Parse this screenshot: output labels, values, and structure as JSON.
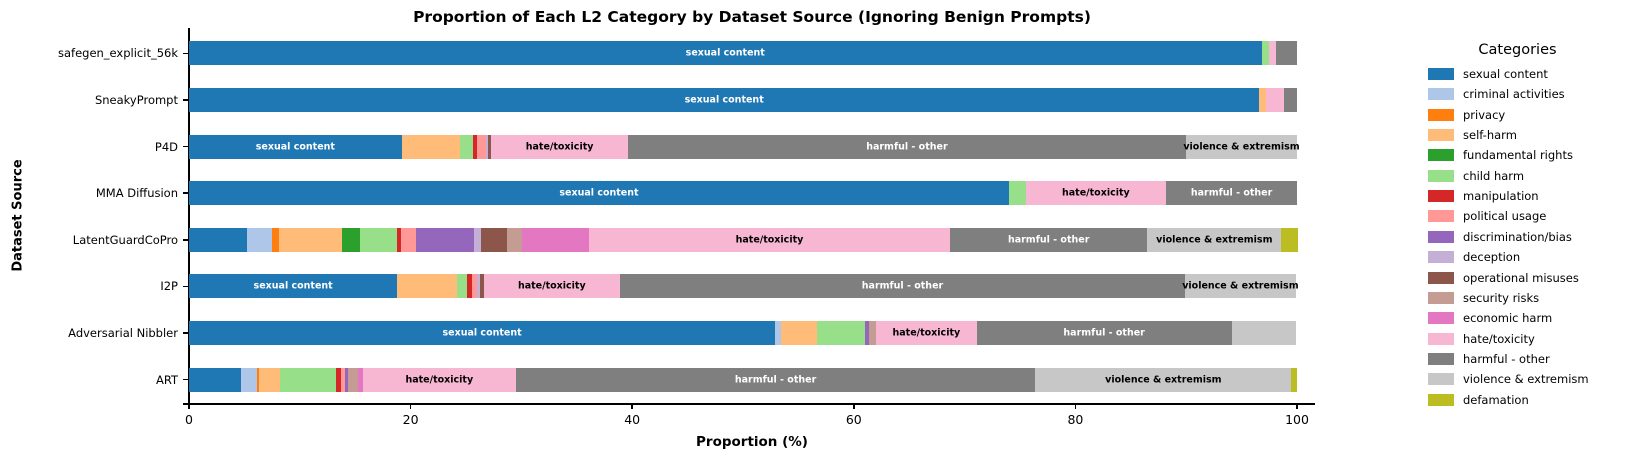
{
  "title": "Proportion of Each L2 Category by Dataset Source (Ignoring Benign Prompts)",
  "xlabel": "Proportion (%)",
  "ylabel": "Dataset Source",
  "legend": {
    "title": "Categories",
    "items": [
      "sexual content",
      "criminal activities",
      "privacy",
      "self-harm",
      "fundamental rights",
      "child harm",
      "manipulation",
      "political usage",
      "discrimination/bias",
      "deception",
      "operational misuses",
      "security risks",
      "economic harm",
      "hate/toxicity",
      "harmful - other",
      "violence & extremism",
      "defamation"
    ]
  },
  "colors": {
    "sexual content": "#1f77b4",
    "criminal activities": "#aec7e8",
    "privacy": "#ff7f0e",
    "self-harm": "#ffbb78",
    "fundamental rights": "#2ca02c",
    "child harm": "#98df8a",
    "manipulation": "#d62728",
    "political usage": "#ff9896",
    "discrimination/bias": "#9467bd",
    "deception": "#c5b0d5",
    "operational misuses": "#8c564b",
    "security risks": "#c49c94",
    "economic harm": "#e377c2",
    "hate/toxicity": "#f7b6d2",
    "harmful - other": "#7f7f7f",
    "violence & extremism": "#c7c7c7",
    "defamation": "#bcbd22"
  },
  "label_text_colors": {
    "sexual content": "#ffffff",
    "harmful - other": "#ffffff",
    "hate/toxicity": "#000000",
    "violence & extremism": "#000000"
  },
  "chart_data": {
    "type": "bar",
    "orientation": "horizontal-stacked",
    "title": "Proportion of Each L2 Category by Dataset Source (Ignoring Benign Prompts)",
    "xlabel": "Proportion (%)",
    "ylabel": "Dataset Source",
    "xlim": [
      0,
      101.7
    ],
    "xticks": [
      0,
      20,
      40,
      60,
      80,
      100
    ],
    "grid": false,
    "legend_position": "right",
    "bar_label_min_pct": 8,
    "rows": [
      {
        "label": "safegen_explicit_56k",
        "segments": [
          {
            "category": "sexual content",
            "value": 96.8
          },
          {
            "category": "child harm",
            "value": 0.7
          },
          {
            "category": "hate/toxicity",
            "value": 0.6
          },
          {
            "category": "harmful - other",
            "value": 1.9
          }
        ]
      },
      {
        "label": "SneakyPrompt",
        "segments": [
          {
            "category": "sexual content",
            "value": 96.6
          },
          {
            "category": "self-harm",
            "value": 0.6
          },
          {
            "category": "hate/toxicity",
            "value": 1.6
          },
          {
            "category": "harmful - other",
            "value": 1.2
          }
        ]
      },
      {
        "label": "P4D",
        "segments": [
          {
            "category": "sexual content",
            "value": 19.2
          },
          {
            "category": "self-harm",
            "value": 5.3
          },
          {
            "category": "child harm",
            "value": 1.1
          },
          {
            "category": "manipulation",
            "value": 0.4
          },
          {
            "category": "political usage",
            "value": 0.8
          },
          {
            "category": "deception",
            "value": 0.2
          },
          {
            "category": "operational misuses",
            "value": 0.3
          },
          {
            "category": "hate/toxicity",
            "value": 12.3
          },
          {
            "category": "harmful - other",
            "value": 50.4
          },
          {
            "category": "violence & extremism",
            "value": 10.0
          }
        ]
      },
      {
        "label": "MMA Diffusion",
        "segments": [
          {
            "category": "sexual content",
            "value": 74.0
          },
          {
            "category": "child harm",
            "value": 1.5
          },
          {
            "category": "hate/toxicity",
            "value": 12.7
          },
          {
            "category": "harmful - other",
            "value": 11.8
          }
        ]
      },
      {
        "label": "LatentGuardCoPro",
        "segments": [
          {
            "category": "sexual content",
            "value": 5.2
          },
          {
            "category": "criminal activities",
            "value": 2.3
          },
          {
            "category": "privacy",
            "value": 0.6
          },
          {
            "category": "self-harm",
            "value": 5.7
          },
          {
            "category": "fundamental rights",
            "value": 1.6
          },
          {
            "category": "child harm",
            "value": 3.4
          },
          {
            "category": "manipulation",
            "value": 0.3
          },
          {
            "category": "political usage",
            "value": 1.4
          },
          {
            "category": "discrimination/bias",
            "value": 5.2
          },
          {
            "category": "deception",
            "value": 0.7
          },
          {
            "category": "operational misuses",
            "value": 2.3
          },
          {
            "category": "security risks",
            "value": 1.4
          },
          {
            "category": "economic harm",
            "value": 6.0
          },
          {
            "category": "hate/toxicity",
            "value": 32.6
          },
          {
            "category": "harmful - other",
            "value": 17.8
          },
          {
            "category": "violence & extremism",
            "value": 12.1
          },
          {
            "category": "defamation",
            "value": 1.5
          }
        ]
      },
      {
        "label": "I2P",
        "segments": [
          {
            "category": "sexual content",
            "value": 18.8
          },
          {
            "category": "self-harm",
            "value": 5.4
          },
          {
            "category": "child harm",
            "value": 0.9
          },
          {
            "category": "manipulation",
            "value": 0.4
          },
          {
            "category": "political usage",
            "value": 0.5
          },
          {
            "category": "deception",
            "value": 0.3
          },
          {
            "category": "operational misuses",
            "value": 0.3
          },
          {
            "category": "hate/toxicity",
            "value": 12.3
          },
          {
            "category": "harmful - other",
            "value": 51.0
          },
          {
            "category": "violence & extremism",
            "value": 10.0
          }
        ]
      },
      {
        "label": "Adversarial Nibbler",
        "segments": [
          {
            "category": "sexual content",
            "value": 52.9
          },
          {
            "category": "criminal activities",
            "value": 0.5
          },
          {
            "category": "self-harm",
            "value": 3.3
          },
          {
            "category": "child harm",
            "value": 4.3
          },
          {
            "category": "discrimination/bias",
            "value": 0.4
          },
          {
            "category": "security risks",
            "value": 0.6
          },
          {
            "category": "hate/toxicity",
            "value": 9.1
          },
          {
            "category": "harmful - other",
            "value": 23.0
          },
          {
            "category": "violence & extremism",
            "value": 5.8
          }
        ]
      },
      {
        "label": "ART",
        "segments": [
          {
            "category": "sexual content",
            "value": 4.7
          },
          {
            "category": "criminal activities",
            "value": 1.4
          },
          {
            "category": "privacy",
            "value": 0.2
          },
          {
            "category": "self-harm",
            "value": 1.9
          },
          {
            "category": "child harm",
            "value": 5.1
          },
          {
            "category": "manipulation",
            "value": 0.4
          },
          {
            "category": "political usage",
            "value": 0.4
          },
          {
            "category": "discrimination/bias",
            "value": 0.3
          },
          {
            "category": "security risks",
            "value": 0.9
          },
          {
            "category": "economic harm",
            "value": 0.4
          },
          {
            "category": "hate/toxicity",
            "value": 13.8
          },
          {
            "category": "harmful - other",
            "value": 46.9
          },
          {
            "category": "violence & extremism",
            "value": 23.1
          },
          {
            "category": "defamation",
            "value": 0.5
          }
        ]
      }
    ]
  }
}
